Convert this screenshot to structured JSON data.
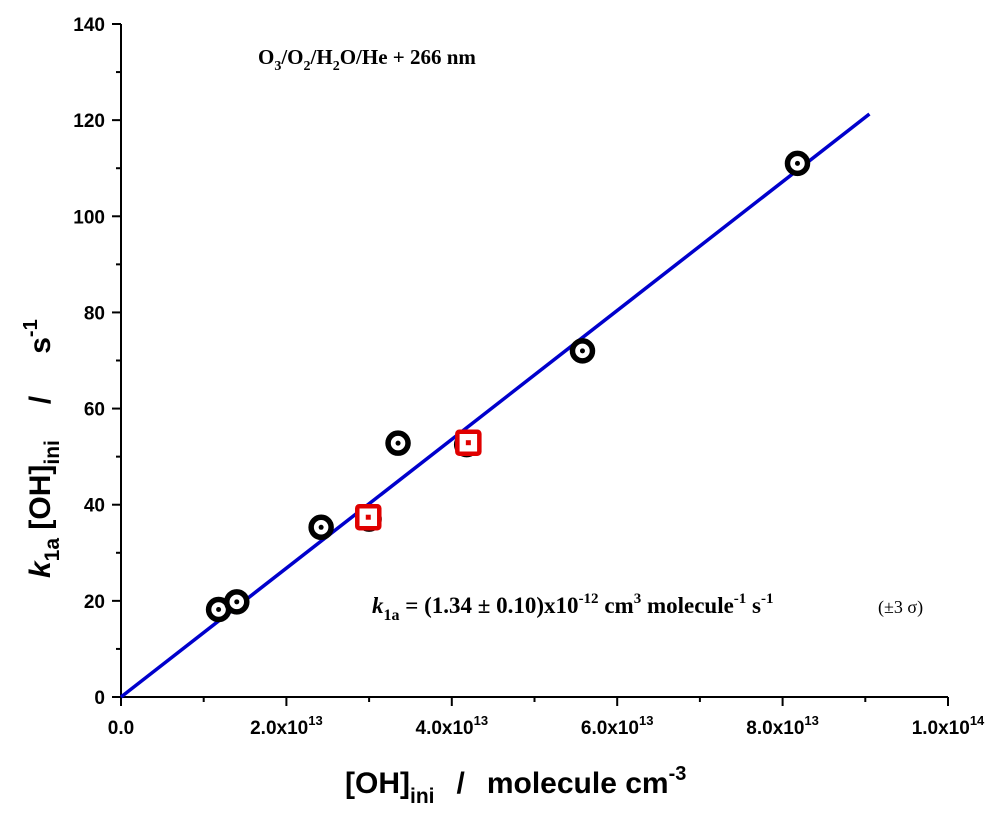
{
  "chart_data": {
    "type": "scatter",
    "annotation_title": {
      "parts": [
        "O",
        "3",
        "/O",
        "2",
        "/H",
        "2",
        "O/He + 266 nm"
      ]
    },
    "fit_annotation": {
      "k": "k",
      "k_sub": "1a",
      "eq": " = (1.34 ± 0.10)x10",
      "exp1": "-12",
      "cm": " cm",
      "exp2": "3",
      "molecule": " molecule",
      "exp3": "-1",
      "s": " s",
      "exp4": "-1",
      "sigma": "(±3 σ)"
    },
    "xlabel": {
      "base": "[OH]",
      "sub": "ini",
      "slash": "/",
      "unit": "molecule cm",
      "unit_sup": "-3"
    },
    "ylabel": {
      "k": "k",
      "k_sub": "1a",
      "oh": " [OH]",
      "oh_sub": "ini",
      "slash": "/",
      "unit": "s",
      "unit_sup": "-1"
    },
    "x_ticks": [
      {
        "value": 0,
        "label": "0.0",
        "exp": ""
      },
      {
        "value": 20000000000000.0,
        "label": "2.0x10",
        "exp": "13"
      },
      {
        "value": 40000000000000.0,
        "label": "4.0x10",
        "exp": "13"
      },
      {
        "value": 60000000000000.0,
        "label": "6.0x10",
        "exp": "13"
      },
      {
        "value": 80000000000000.0,
        "label": "8.0x10",
        "exp": "13"
      },
      {
        "value": 100000000000000.0,
        "label": "1.0x10",
        "exp": "14"
      }
    ],
    "y_ticks": [
      0,
      20,
      40,
      60,
      80,
      100,
      120,
      140
    ],
    "xlim": [
      0,
      100000000000000.0
    ],
    "ylim": [
      0,
      140
    ],
    "series": [
      {
        "marker": "circle",
        "color": "#000000",
        "points": [
          {
            "x": 11800000000000.0,
            "y": 18.2
          },
          {
            "x": 14000000000000.0,
            "y": 19.8
          },
          {
            "x": 24200000000000.0,
            "y": 35.3
          },
          {
            "x": 30000000000000.0,
            "y": 37.0
          },
          {
            "x": 33500000000000.0,
            "y": 52.8
          },
          {
            "x": 41800000000000.0,
            "y": 52.5
          },
          {
            "x": 55800000000000.0,
            "y": 72.0
          },
          {
            "x": 81800000000000.0,
            "y": 111.0
          }
        ]
      },
      {
        "marker": "square",
        "color": "#e00000",
        "points": [
          {
            "x": 29900000000000.0,
            "y": 37.4
          },
          {
            "x": 42000000000000.0,
            "y": 52.9
          }
        ]
      }
    ],
    "fit_line": {
      "color": "#0000cc",
      "slope": 1.34e-12,
      "intercept": 0,
      "x_range": [
        0,
        90500000000000.0
      ]
    },
    "grid": false,
    "legend": "none"
  }
}
